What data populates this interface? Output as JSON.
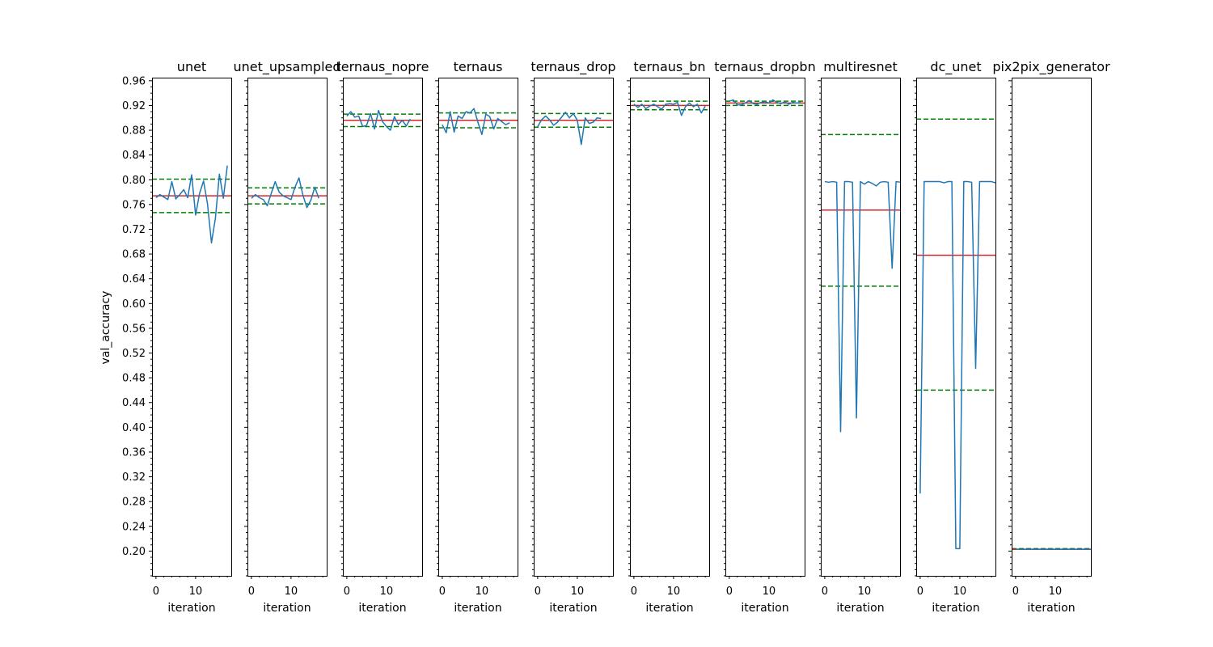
{
  "chart_data": {
    "type": "line",
    "ylabel": "val_accuracy",
    "xlabel": "iteration",
    "ylim": [
      0.16,
      0.965
    ],
    "xlim": [
      -1,
      19
    ],
    "yticks": [
      0.96,
      0.92,
      0.88,
      0.84,
      0.8,
      0.76,
      0.72,
      0.68,
      0.64,
      0.6,
      0.56,
      0.52,
      0.48,
      0.44,
      0.4,
      0.36,
      0.32,
      0.28,
      0.24,
      0.2
    ],
    "ytick_labels": [
      "0.96",
      "0.92",
      "0.88",
      "0.84",
      "0.80",
      "0.76",
      "0.72",
      "0.68",
      "0.64",
      "0.60",
      "0.56",
      "0.52",
      "0.48",
      "0.44",
      "0.40",
      "0.36",
      "0.32",
      "0.28",
      "0.24",
      "0.20"
    ],
    "xticks": [
      0,
      10
    ],
    "xtick_labels": [
      "0",
      "10"
    ],
    "colors": {
      "series": "#1f77b4",
      "mean": "#d62728",
      "band": "#008000"
    },
    "panels": [
      {
        "title": "unet",
        "values": [
          0.771,
          0.776,
          0.772,
          0.768,
          0.797,
          0.769,
          0.776,
          0.784,
          0.771,
          0.808,
          0.743,
          0.778,
          0.798,
          0.761,
          0.698,
          0.738,
          0.809,
          0.77,
          0.823
        ],
        "mean": 0.774,
        "upper": 0.801,
        "lower": 0.747
      },
      {
        "title": "unet_upsampled",
        "values": [
          0.77,
          0.776,
          0.771,
          0.768,
          0.758,
          0.778,
          0.797,
          0.78,
          0.774,
          0.771,
          0.768,
          0.788,
          0.803,
          0.775,
          0.755,
          0.767,
          0.788,
          0.77
        ],
        "mean": 0.774,
        "upper": 0.787,
        "lower": 0.761
      },
      {
        "title": "ternaus_nopre",
        "values": [
          0.903,
          0.91,
          0.901,
          0.903,
          0.886,
          0.888,
          0.907,
          0.882,
          0.912,
          0.894,
          0.886,
          0.88,
          0.902,
          0.889,
          0.896,
          0.887,
          0.898
        ],
        "mean": 0.896,
        "upper": 0.906,
        "lower": 0.886
      },
      {
        "title": "ternaus",
        "values": [
          0.889,
          0.876,
          0.91,
          0.877,
          0.903,
          0.899,
          0.91,
          0.908,
          0.915,
          0.893,
          0.873,
          0.906,
          0.902,
          0.882,
          0.899,
          0.894,
          0.889,
          0.892
        ],
        "mean": 0.896,
        "upper": 0.908,
        "lower": 0.884
      },
      {
        "title": "ternaus_drop",
        "values": [
          0.886,
          0.897,
          0.903,
          0.897,
          0.888,
          0.893,
          0.901,
          0.909,
          0.9,
          0.907,
          0.896,
          0.857,
          0.9,
          0.891,
          0.893,
          0.9,
          0.899
        ],
        "mean": 0.896,
        "upper": 0.907,
        "lower": 0.885
      },
      {
        "title": "ternaus_bn",
        "values": [
          0.922,
          0.917,
          0.922,
          0.915,
          0.919,
          0.922,
          0.918,
          0.914,
          0.922,
          0.923,
          0.922,
          0.925,
          0.904,
          0.918,
          0.924,
          0.918,
          0.922,
          0.908,
          0.919
        ],
        "mean": 0.92,
        "upper": 0.927,
        "lower": 0.913
      },
      {
        "title": "ternaus_dropbn",
        "values": [
          0.927,
          0.929,
          0.921,
          0.921,
          0.924,
          0.928,
          0.923,
          0.922,
          0.925,
          0.926,
          0.924,
          0.929,
          0.925,
          0.923,
          0.926,
          0.922,
          0.925,
          0.924,
          0.925
        ],
        "mean": 0.924,
        "upper": 0.927,
        "lower": 0.92
      },
      {
        "title": "multiresnet",
        "values": [
          0.797,
          0.796,
          0.797,
          0.796,
          0.393,
          0.797,
          0.797,
          0.796,
          0.415,
          0.797,
          0.793,
          0.797,
          0.794,
          0.79,
          0.796,
          0.797,
          0.796,
          0.657,
          0.797,
          0.796
        ],
        "mean": 0.751,
        "upper": 0.873,
        "lower": 0.628
      },
      {
        "title": "dc_unet",
        "values": [
          0.293,
          0.797,
          0.797,
          0.797,
          0.797,
          0.797,
          0.795,
          0.797,
          0.797,
          0.204,
          0.204,
          0.797,
          0.797,
          0.796,
          0.495,
          0.797,
          0.797,
          0.797,
          0.797,
          0.795
        ],
        "mean": 0.678,
        "upper": 0.898,
        "lower": 0.46
      },
      {
        "title": "pix2pix_generator",
        "values": [
          0.203,
          0.203,
          0.203,
          0.203,
          0.203,
          0.203,
          0.203,
          0.203,
          0.203,
          0.203,
          0.203,
          0.203,
          0.203,
          0.203,
          0.203,
          0.203,
          0.203,
          0.203,
          0.203,
          0.203
        ],
        "mean": 0.203,
        "upper": 0.204,
        "lower": 0.203
      }
    ]
  }
}
